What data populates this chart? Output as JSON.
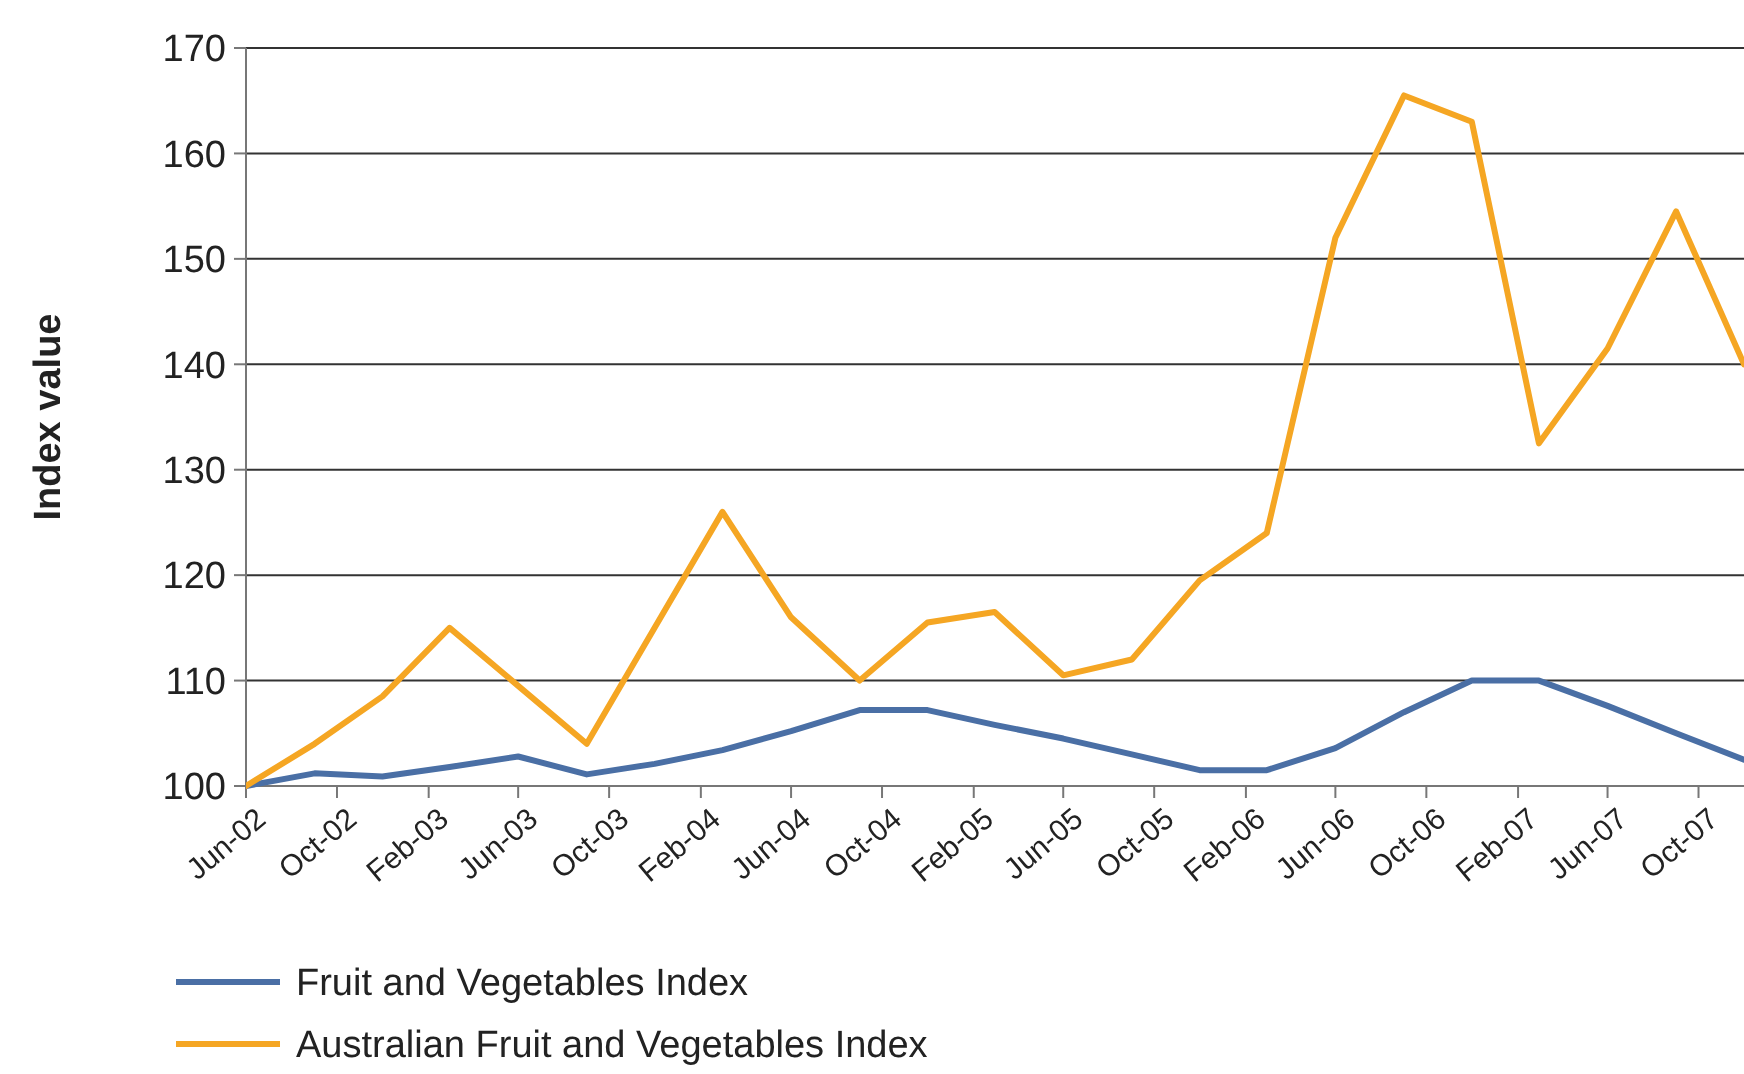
{
  "chart_data": {
    "type": "line",
    "ylabel": "Index value",
    "x": [
      "2002-06",
      "2002-09",
      "2002-12",
      "2003-03",
      "2003-06",
      "2003-09",
      "2003-12",
      "2004-03",
      "2004-06",
      "2004-09",
      "2004-12",
      "2005-03",
      "2005-06",
      "2005-09",
      "2005-12",
      "2006-03",
      "2006-06",
      "2006-09",
      "2006-12",
      "2007-03",
      "2007-06",
      "2007-09",
      "2007-12"
    ],
    "series": [
      {
        "name": "Fruit and Vegetables Index",
        "color": "#4a6fa5",
        "values": [
          100,
          101.2,
          100.9,
          101.8,
          102.8,
          101.1,
          102.1,
          103.4,
          105.2,
          107.2,
          107.2,
          105.8,
          104.5,
          103,
          101.5,
          101.5,
          103.6,
          107,
          110,
          110,
          107.6,
          105,
          102.5
        ]
      },
      {
        "name": "Australian Fruit and Vegetables Index",
        "color": "#f5a623",
        "values": [
          100,
          104,
          108.5,
          115,
          109.5,
          104,
          115,
          126,
          116,
          110,
          115.5,
          116.5,
          110.5,
          112,
          119.5,
          124,
          152,
          165.5,
          163,
          132.5,
          141.5,
          154.5,
          140
        ]
      }
    ],
    "xlim": [
      "2002-06",
      "2007-12"
    ],
    "xticks": [
      {
        "value": "2002-06",
        "label": "Jun-02"
      },
      {
        "value": "2002-10",
        "label": "Oct-02"
      },
      {
        "value": "2003-02",
        "label": "Feb-03"
      },
      {
        "value": "2003-06",
        "label": "Jun-03"
      },
      {
        "value": "2003-10",
        "label": "Oct-03"
      },
      {
        "value": "2004-02",
        "label": "Feb-04"
      },
      {
        "value": "2004-06",
        "label": "Jun-04"
      },
      {
        "value": "2004-10",
        "label": "Oct-04"
      },
      {
        "value": "2005-02",
        "label": "Feb-05"
      },
      {
        "value": "2005-06",
        "label": "Jun-05"
      },
      {
        "value": "2005-10",
        "label": "Oct-05"
      },
      {
        "value": "2006-02",
        "label": "Feb-06"
      },
      {
        "value": "2006-06",
        "label": "Jun-06"
      },
      {
        "value": "2006-10",
        "label": "Oct-06"
      },
      {
        "value": "2007-02",
        "label": "Feb-07"
      },
      {
        "value": "2007-06",
        "label": "Jun-07"
      },
      {
        "value": "2007-10",
        "label": "Oct-07"
      }
    ],
    "ylim": [
      100,
      170
    ],
    "yticks": [
      100,
      110,
      120,
      130,
      140,
      150,
      160,
      170
    ],
    "grid": "y",
    "legend": "bottom",
    "marker": "none",
    "line_style": "solid"
  }
}
